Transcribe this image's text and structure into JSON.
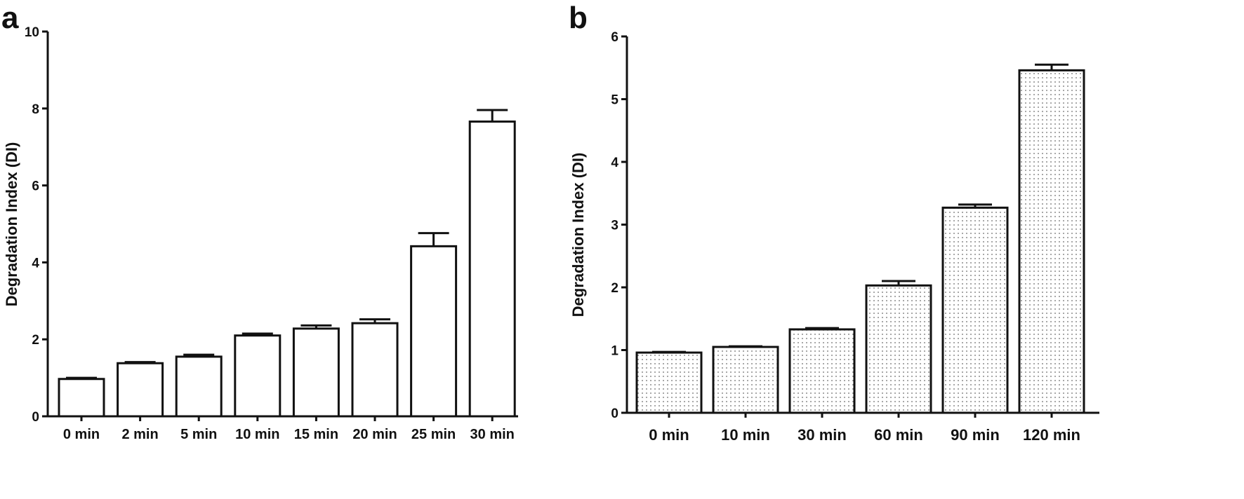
{
  "chart_data": [
    {
      "panel_label": "a",
      "type": "bar",
      "title": "",
      "xlabel": "",
      "ylabel": "Degradation Index (DI)",
      "ylim": [
        0,
        10
      ],
      "yticks": [
        0,
        2,
        4,
        6,
        8,
        10
      ],
      "categories": [
        "0 min",
        "2 min",
        "5 min",
        "10 min",
        "15 min",
        "20 min",
        "25 min",
        "30 min"
      ],
      "values": [
        0.97,
        1.38,
        1.55,
        2.1,
        2.28,
        2.42,
        4.42,
        7.66
      ],
      "errors": [
        0.03,
        0.03,
        0.05,
        0.05,
        0.08,
        0.1,
        0.34,
        0.3
      ],
      "fill": "plain",
      "grid": false
    },
    {
      "panel_label": "b",
      "type": "bar",
      "title": "",
      "xlabel": "",
      "ylabel": "Degradation Index (DI)",
      "ylim": [
        0,
        6
      ],
      "yticks": [
        0,
        1,
        2,
        3,
        4,
        5,
        6
      ],
      "categories": [
        "0 min",
        "10 min",
        "30 min",
        "60 min",
        "90 min",
        "120 min"
      ],
      "values": [
        0.96,
        1.05,
        1.33,
        2.03,
        3.27,
        5.46
      ],
      "errors": [
        0.01,
        0.01,
        0.02,
        0.07,
        0.05,
        0.09
      ],
      "fill": "dotted",
      "grid": false
    }
  ]
}
